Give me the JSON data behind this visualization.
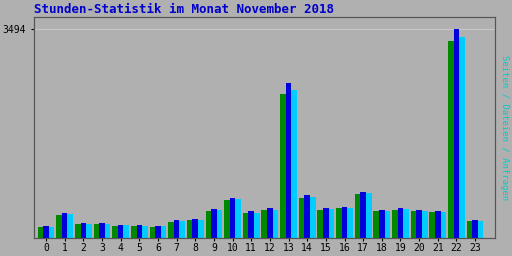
{
  "title": "Stunden-Statistik im Monat November 2018",
  "ylabel": "Seiten / Dateien / Anfragen",
  "hours": [
    0,
    1,
    2,
    3,
    4,
    5,
    6,
    7,
    8,
    9,
    10,
    11,
    12,
    13,
    14,
    15,
    16,
    17,
    18,
    19,
    20,
    21,
    22,
    23
  ],
  "seiten": [
    200,
    420,
    250,
    250,
    220,
    210,
    200,
    290,
    310,
    480,
    660,
    440,
    490,
    2600,
    720,
    500,
    520,
    770,
    470,
    490,
    470,
    450,
    3494,
    300
  ],
  "dateien": [
    185,
    390,
    235,
    235,
    205,
    195,
    190,
    280,
    300,
    460,
    640,
    420,
    470,
    2480,
    680,
    480,
    505,
    750,
    450,
    475,
    455,
    432,
    3370,
    285
  ],
  "anfragen": [
    180,
    380,
    230,
    230,
    200,
    190,
    185,
    270,
    295,
    450,
    625,
    410,
    460,
    2400,
    660,
    470,
    495,
    735,
    440,
    465,
    445,
    422,
    3300,
    280
  ],
  "color_green": "#008800",
  "color_blue": "#0000dd",
  "color_cyan": "#00ccff",
  "background_color": "#b0b0b0",
  "title_color": "#0000cc",
  "ylabel_color": "#00cccc",
  "ylim_max": 3700,
  "ytick_val": 3494,
  "ytick_label": "3494",
  "bar_width": 0.3,
  "figsize": [
    5.12,
    2.56
  ],
  "dpi": 100
}
